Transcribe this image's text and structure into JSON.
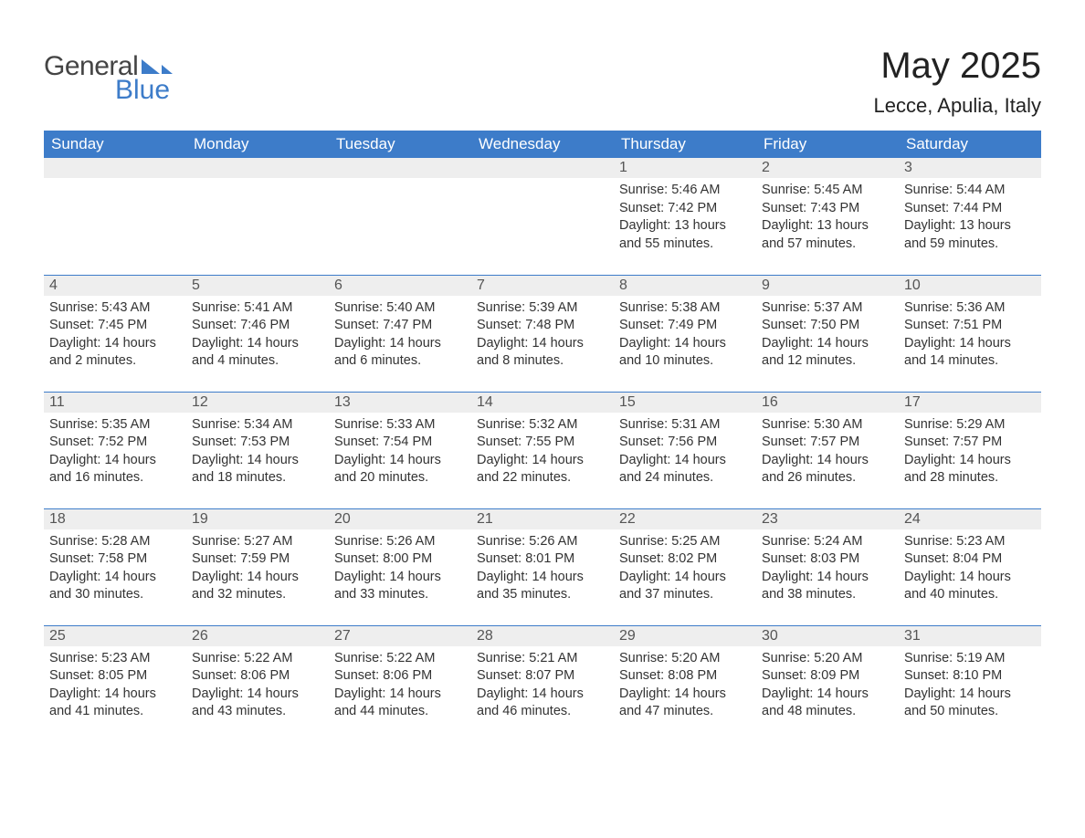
{
  "brand": {
    "word1": "General",
    "word2": "Blue",
    "tri_color": "#3d7cc9",
    "text_color1": "#444444",
    "text_color2": "#3d7cc9"
  },
  "title": "May 2025",
  "location": "Lecce, Apulia, Italy",
  "colors": {
    "header_bg": "#3d7cc9",
    "header_text": "#ffffff",
    "daynum_bg": "#eeeeee",
    "daynum_text": "#555555",
    "body_text": "#333333",
    "row_border": "#3d7cc9",
    "page_bg": "#ffffff"
  },
  "day_headers": [
    "Sunday",
    "Monday",
    "Tuesday",
    "Wednesday",
    "Thursday",
    "Friday",
    "Saturday"
  ],
  "weeks": [
    [
      null,
      null,
      null,
      null,
      {
        "n": "1",
        "sunrise": "Sunrise: 5:46 AM",
        "sunset": "Sunset: 7:42 PM",
        "daylight": "Daylight: 13 hours and 55 minutes."
      },
      {
        "n": "2",
        "sunrise": "Sunrise: 5:45 AM",
        "sunset": "Sunset: 7:43 PM",
        "daylight": "Daylight: 13 hours and 57 minutes."
      },
      {
        "n": "3",
        "sunrise": "Sunrise: 5:44 AM",
        "sunset": "Sunset: 7:44 PM",
        "daylight": "Daylight: 13 hours and 59 minutes."
      }
    ],
    [
      {
        "n": "4",
        "sunrise": "Sunrise: 5:43 AM",
        "sunset": "Sunset: 7:45 PM",
        "daylight": "Daylight: 14 hours and 2 minutes."
      },
      {
        "n": "5",
        "sunrise": "Sunrise: 5:41 AM",
        "sunset": "Sunset: 7:46 PM",
        "daylight": "Daylight: 14 hours and 4 minutes."
      },
      {
        "n": "6",
        "sunrise": "Sunrise: 5:40 AM",
        "sunset": "Sunset: 7:47 PM",
        "daylight": "Daylight: 14 hours and 6 minutes."
      },
      {
        "n": "7",
        "sunrise": "Sunrise: 5:39 AM",
        "sunset": "Sunset: 7:48 PM",
        "daylight": "Daylight: 14 hours and 8 minutes."
      },
      {
        "n": "8",
        "sunrise": "Sunrise: 5:38 AM",
        "sunset": "Sunset: 7:49 PM",
        "daylight": "Daylight: 14 hours and 10 minutes."
      },
      {
        "n": "9",
        "sunrise": "Sunrise: 5:37 AM",
        "sunset": "Sunset: 7:50 PM",
        "daylight": "Daylight: 14 hours and 12 minutes."
      },
      {
        "n": "10",
        "sunrise": "Sunrise: 5:36 AM",
        "sunset": "Sunset: 7:51 PM",
        "daylight": "Daylight: 14 hours and 14 minutes."
      }
    ],
    [
      {
        "n": "11",
        "sunrise": "Sunrise: 5:35 AM",
        "sunset": "Sunset: 7:52 PM",
        "daylight": "Daylight: 14 hours and 16 minutes."
      },
      {
        "n": "12",
        "sunrise": "Sunrise: 5:34 AM",
        "sunset": "Sunset: 7:53 PM",
        "daylight": "Daylight: 14 hours and 18 minutes."
      },
      {
        "n": "13",
        "sunrise": "Sunrise: 5:33 AM",
        "sunset": "Sunset: 7:54 PM",
        "daylight": "Daylight: 14 hours and 20 minutes."
      },
      {
        "n": "14",
        "sunrise": "Sunrise: 5:32 AM",
        "sunset": "Sunset: 7:55 PM",
        "daylight": "Daylight: 14 hours and 22 minutes."
      },
      {
        "n": "15",
        "sunrise": "Sunrise: 5:31 AM",
        "sunset": "Sunset: 7:56 PM",
        "daylight": "Daylight: 14 hours and 24 minutes."
      },
      {
        "n": "16",
        "sunrise": "Sunrise: 5:30 AM",
        "sunset": "Sunset: 7:57 PM",
        "daylight": "Daylight: 14 hours and 26 minutes."
      },
      {
        "n": "17",
        "sunrise": "Sunrise: 5:29 AM",
        "sunset": "Sunset: 7:57 PM",
        "daylight": "Daylight: 14 hours and 28 minutes."
      }
    ],
    [
      {
        "n": "18",
        "sunrise": "Sunrise: 5:28 AM",
        "sunset": "Sunset: 7:58 PM",
        "daylight": "Daylight: 14 hours and 30 minutes."
      },
      {
        "n": "19",
        "sunrise": "Sunrise: 5:27 AM",
        "sunset": "Sunset: 7:59 PM",
        "daylight": "Daylight: 14 hours and 32 minutes."
      },
      {
        "n": "20",
        "sunrise": "Sunrise: 5:26 AM",
        "sunset": "Sunset: 8:00 PM",
        "daylight": "Daylight: 14 hours and 33 minutes."
      },
      {
        "n": "21",
        "sunrise": "Sunrise: 5:26 AM",
        "sunset": "Sunset: 8:01 PM",
        "daylight": "Daylight: 14 hours and 35 minutes."
      },
      {
        "n": "22",
        "sunrise": "Sunrise: 5:25 AM",
        "sunset": "Sunset: 8:02 PM",
        "daylight": "Daylight: 14 hours and 37 minutes."
      },
      {
        "n": "23",
        "sunrise": "Sunrise: 5:24 AM",
        "sunset": "Sunset: 8:03 PM",
        "daylight": "Daylight: 14 hours and 38 minutes."
      },
      {
        "n": "24",
        "sunrise": "Sunrise: 5:23 AM",
        "sunset": "Sunset: 8:04 PM",
        "daylight": "Daylight: 14 hours and 40 minutes."
      }
    ],
    [
      {
        "n": "25",
        "sunrise": "Sunrise: 5:23 AM",
        "sunset": "Sunset: 8:05 PM",
        "daylight": "Daylight: 14 hours and 41 minutes."
      },
      {
        "n": "26",
        "sunrise": "Sunrise: 5:22 AM",
        "sunset": "Sunset: 8:06 PM",
        "daylight": "Daylight: 14 hours and 43 minutes."
      },
      {
        "n": "27",
        "sunrise": "Sunrise: 5:22 AM",
        "sunset": "Sunset: 8:06 PM",
        "daylight": "Daylight: 14 hours and 44 minutes."
      },
      {
        "n": "28",
        "sunrise": "Sunrise: 5:21 AM",
        "sunset": "Sunset: 8:07 PM",
        "daylight": "Daylight: 14 hours and 46 minutes."
      },
      {
        "n": "29",
        "sunrise": "Sunrise: 5:20 AM",
        "sunset": "Sunset: 8:08 PM",
        "daylight": "Daylight: 14 hours and 47 minutes."
      },
      {
        "n": "30",
        "sunrise": "Sunrise: 5:20 AM",
        "sunset": "Sunset: 8:09 PM",
        "daylight": "Daylight: 14 hours and 48 minutes."
      },
      {
        "n": "31",
        "sunrise": "Sunrise: 5:19 AM",
        "sunset": "Sunset: 8:10 PM",
        "daylight": "Daylight: 14 hours and 50 minutes."
      }
    ]
  ]
}
